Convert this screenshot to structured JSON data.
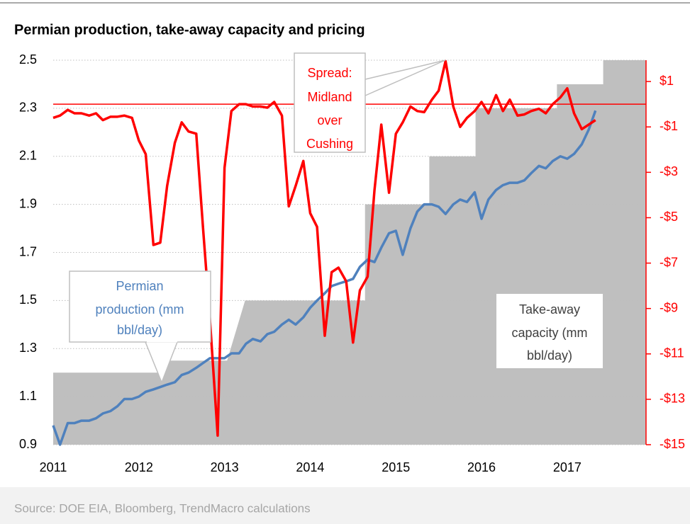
{
  "chart_data": {
    "type": "combo",
    "title": "Permian production, take-away capacity and pricing",
    "source": "Source: DOE EIA, Bloomberg, TrendMacro calculations",
    "x": [
      2011,
      2011.08,
      2011.17,
      2011.25,
      2011.33,
      2011.42,
      2011.5,
      2011.58,
      2011.67,
      2011.75,
      2011.83,
      2011.92,
      2012,
      2012.08,
      2012.17,
      2012.25,
      2012.33,
      2012.42,
      2012.5,
      2012.58,
      2012.67,
      2012.75,
      2012.83,
      2012.92,
      2013,
      2013.08,
      2013.17,
      2013.25,
      2013.33,
      2013.42,
      2013.5,
      2013.58,
      2013.67,
      2013.75,
      2013.83,
      2013.92,
      2014,
      2014.08,
      2014.17,
      2014.25,
      2014.33,
      2014.42,
      2014.5,
      2014.58,
      2014.67,
      2014.75,
      2014.83,
      2014.92,
      2015,
      2015.08,
      2015.17,
      2015.25,
      2015.33,
      2015.42,
      2015.5,
      2015.58,
      2015.67,
      2015.75,
      2015.83,
      2015.92,
      2016,
      2016.08,
      2016.17,
      2016.25,
      2016.33,
      2016.42,
      2016.5,
      2016.58,
      2016.67,
      2016.75,
      2016.83,
      2016.92,
      2017,
      2017.08,
      2017.17,
      2017.25,
      2017.33
    ],
    "series": [
      {
        "name": "Take-away capacity",
        "kind": "area",
        "color": "#bfbfbf",
        "x": [
          2011,
          2012.27,
          2012.27,
          2013.03,
          2013.24,
          2014.64,
          2014.64,
          2015.39,
          2015.39,
          2015.93,
          2015.93,
          2016.88,
          2016.88,
          2017.42,
          2017.42,
          2017.92
        ],
        "values": [
          1.2,
          1.2,
          1.25,
          1.25,
          1.5,
          1.5,
          1.9,
          1.9,
          2.1,
          2.1,
          2.3,
          2.3,
          2.4,
          2.4,
          2.5,
          2.5
        ]
      },
      {
        "name": "Permian production",
        "kind": "line",
        "color": "#4f81bd",
        "values": [
          0.98,
          0.9,
          0.99,
          0.99,
          1.0,
          1.0,
          1.01,
          1.03,
          1.04,
          1.06,
          1.09,
          1.09,
          1.1,
          1.12,
          1.13,
          1.14,
          1.15,
          1.16,
          1.19,
          1.2,
          1.22,
          1.24,
          1.26,
          1.26,
          1.26,
          1.28,
          1.28,
          1.32,
          1.34,
          1.33,
          1.36,
          1.37,
          1.4,
          1.42,
          1.4,
          1.43,
          1.47,
          1.5,
          1.53,
          1.56,
          1.57,
          1.58,
          1.59,
          1.64,
          1.67,
          1.66,
          1.72,
          1.78,
          1.79,
          1.69,
          1.8,
          1.87,
          1.9,
          1.9,
          1.89,
          1.86,
          1.9,
          1.92,
          1.91,
          1.95,
          1.84,
          1.92,
          1.96,
          1.98,
          1.99,
          1.99,
          2.0,
          2.03,
          2.06,
          2.05,
          2.08,
          2.1,
          2.09,
          2.11,
          2.15,
          2.21,
          2.29
        ]
      },
      {
        "name": "Spread: Midland over Cushing",
        "kind": "line",
        "axis": "y2",
        "color": "#ff0000",
        "values": [
          -0.6,
          -0.5,
          -0.25,
          -0.4,
          -0.4,
          -0.5,
          -0.4,
          -0.7,
          -0.55,
          -0.55,
          -0.5,
          -0.6,
          -1.6,
          -2.2,
          -6.2,
          -6.1,
          -3.6,
          -1.7,
          -0.8,
          -1.2,
          -1.3,
          -5.5,
          -9.5,
          -14.6,
          -2.8,
          -0.3,
          0.0,
          0.0,
          -0.1,
          -0.1,
          -0.15,
          0.1,
          -0.5,
          -4.5,
          -3.6,
          -2.5,
          -4.8,
          -5.4,
          -10.2,
          -7.4,
          -7.2,
          -7.8,
          -10.5,
          -8.2,
          -7.6,
          -3.8,
          -0.9,
          -3.9,
          -1.3,
          -0.8,
          -0.1,
          -0.3,
          -0.35,
          0.2,
          0.6,
          1.9,
          -0.1,
          -1.0,
          -0.6,
          -0.3,
          0.1,
          -0.4,
          0.4,
          -0.3,
          0.2,
          -0.5,
          -0.45,
          -0.3,
          -0.2,
          -0.4,
          0.0,
          0.3,
          0.7,
          -0.4,
          -1.1,
          -0.9,
          -0.7
        ]
      }
    ],
    "xlim": [
      2011,
      2017.92
    ],
    "xticks": [
      2011,
      2012,
      2013,
      2014,
      2015,
      2016,
      2017
    ],
    "ylim": [
      0.9,
      2.5
    ],
    "yticks": [
      0.9,
      1.1,
      1.3,
      1.5,
      1.7,
      1.9,
      2.1,
      2.3,
      2.5
    ],
    "y2lim": [
      -15,
      1.94
    ],
    "y2ticks": [
      {
        "value": 1,
        "label": "$1"
      },
      {
        "value": -1,
        "label": "-$1"
      },
      {
        "value": -3,
        "label": "-$3"
      },
      {
        "value": -5,
        "label": "-$5"
      },
      {
        "value": -7,
        "label": "-$7"
      },
      {
        "value": -9,
        "label": "-$9"
      },
      {
        "value": -11,
        "label": "-$11"
      },
      {
        "value": -13,
        "label": "-$13"
      },
      {
        "value": -15,
        "label": "-$15"
      }
    ],
    "y2_color": "#ff0000",
    "reference_line": {
      "axis": "y2",
      "value": 0,
      "color": "#ff0000"
    },
    "grid": true,
    "annotations": [
      {
        "lines": [
          "Spread:",
          "Midland",
          "over",
          "Cushing"
        ],
        "color": "#ff0000"
      },
      {
        "lines": [
          "Permian",
          "production (mm",
          "bbl/day)"
        ],
        "color": "#4f81bd"
      },
      {
        "lines": [
          "Take-away",
          "capacity (mm",
          "bbl/day)"
        ],
        "color": "#404040"
      }
    ]
  }
}
